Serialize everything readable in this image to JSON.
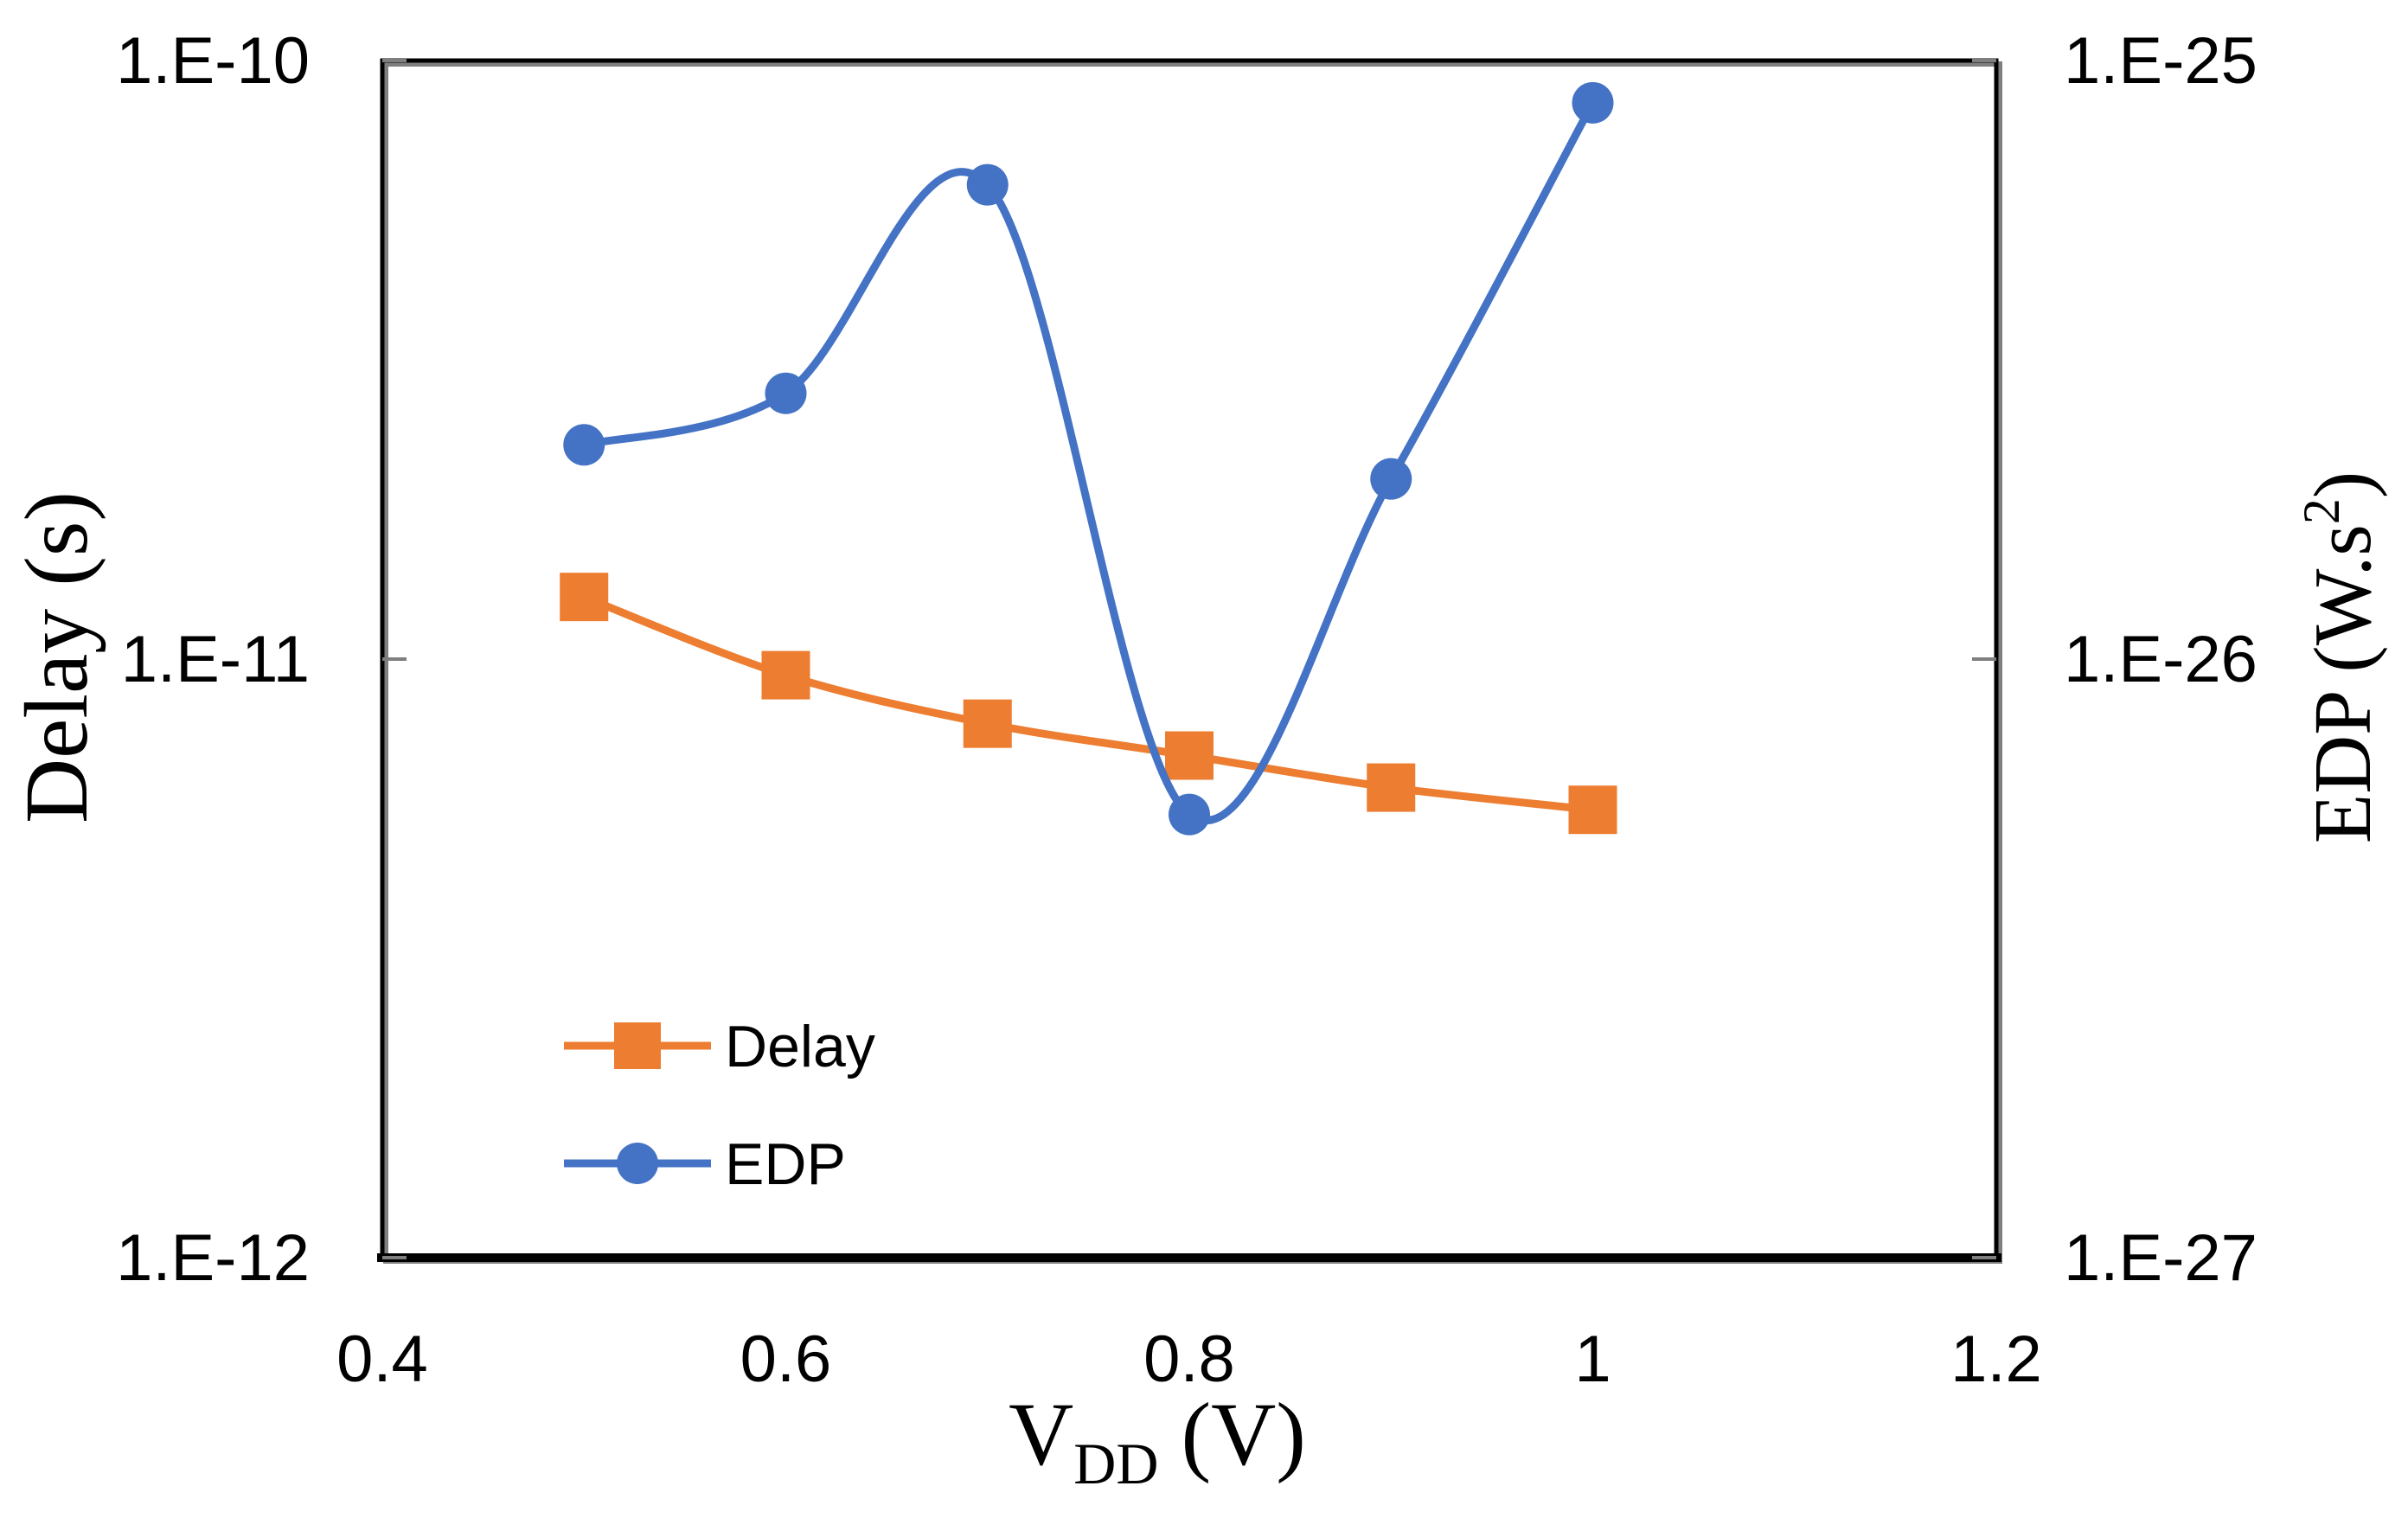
{
  "chart_data": {
    "type": "line",
    "x": [
      0.5,
      0.6,
      0.7,
      0.8,
      0.9,
      1.0
    ],
    "series": [
      {
        "name": "Delay",
        "axis": "left",
        "color": "#ED7D31",
        "marker": "square",
        "values": [
          1.27e-11,
          9.4e-12,
          7.8e-12,
          6.9e-12,
          6.1e-12,
          5.6e-12
        ]
      },
      {
        "name": "EDP",
        "axis": "right",
        "color": "#4472C4",
        "marker": "circle",
        "values": [
          2.28e-26,
          2.78e-26,
          6.2e-26,
          5.5e-27,
          2e-26,
          8.5e-26
        ]
      }
    ],
    "xlim": [
      0.4,
      1.2
    ],
    "ylim_left": [
      1e-12,
      1e-10
    ],
    "ylim_right": [
      1e-27,
      1e-25
    ],
    "yscale": "log",
    "x_ticks": [
      "0.4",
      "0.6",
      "0.8",
      "1",
      "1.2"
    ],
    "y_left_ticks": [
      "1.E-10",
      "1.E-11",
      "1.E-12"
    ],
    "y_right_ticks": [
      "1.E-25",
      "1.E-26",
      "1.E-27"
    ],
    "xlabel": {
      "main": "V",
      "subscript": "DD",
      "unit": " (V)"
    },
    "ylabel_left": "Delay (s)",
    "ylabel_right": {
      "main": "EDP (W.s",
      "superscript": "2",
      "close": ")"
    },
    "legend": {
      "position": "bottom-left",
      "entries": [
        "Delay",
        "EDP"
      ]
    },
    "grid": false
  }
}
